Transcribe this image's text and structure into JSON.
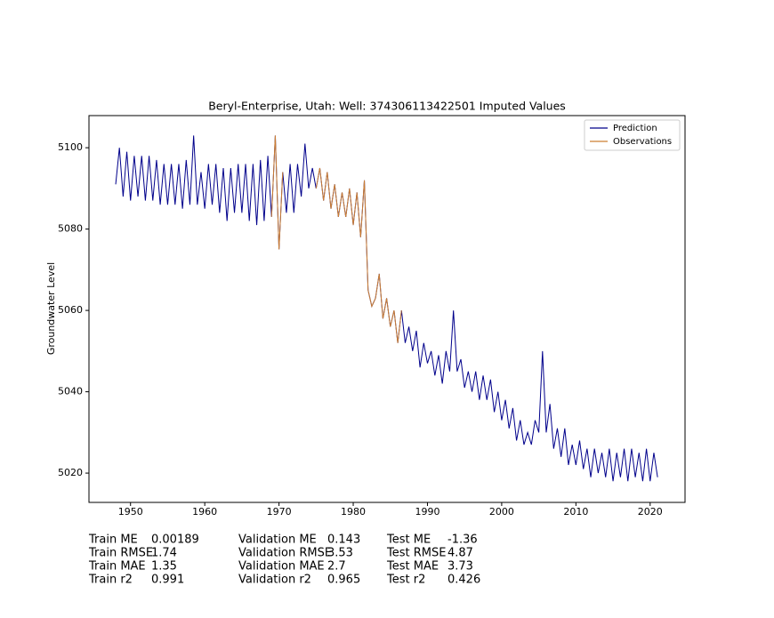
{
  "chart_data": {
    "type": "line",
    "title": "Beryl-Enterprise, Utah: Well: 374306113422501 Imputed Values",
    "y_label": "Groundwater Level",
    "xlim": [
      1944.4,
      2024.7
    ],
    "ylim": [
      5012.8,
      5107.9
    ],
    "xticks": [
      1950,
      1960,
      1970,
      1980,
      1990,
      2000,
      2010,
      2020
    ],
    "yticks": [
      5020,
      5040,
      5060,
      5080,
      5100
    ],
    "grid": false,
    "legend": "upper right",
    "series": [
      {
        "name": "Prediction",
        "color": "#00008b",
        "x": [
          1948,
          1948.5,
          1949,
          1949.5,
          1950,
          1950.5,
          1951,
          1951.5,
          1952,
          1952.5,
          1953,
          1953.5,
          1954,
          1954.5,
          1955,
          1955.5,
          1956,
          1956.5,
          1957,
          1957.5,
          1958,
          1958.5,
          1959,
          1959.5,
          1960,
          1960.5,
          1961,
          1961.5,
          1962,
          1962.5,
          1963,
          1963.5,
          1964,
          1964.5,
          1965,
          1965.5,
          1966,
          1966.5,
          1967,
          1967.5,
          1968,
          1968.5,
          1969,
          1969.5,
          1970,
          1970.5,
          1971,
          1971.5,
          1972,
          1972.5,
          1973,
          1973.5,
          1974,
          1974.5,
          1975,
          1975.5,
          1976,
          1976.5,
          1977,
          1977.5,
          1978,
          1978.5,
          1979,
          1979.5,
          1980,
          1980.5,
          1981,
          1981.5,
          1982,
          1982.5,
          1983,
          1983.5,
          1984,
          1984.5,
          1985,
          1985.5,
          1986,
          1986.5,
          1987,
          1987.5,
          1988,
          1988.5,
          1989,
          1989.5,
          1990,
          1990.5,
          1991,
          1991.5,
          1992,
          1992.5,
          1993,
          1993.5,
          1994,
          1994.5,
          1995,
          1995.5,
          1996,
          1996.5,
          1997,
          1997.5,
          1998,
          1998.5,
          1999,
          1999.5,
          2000,
          2000.5,
          2001,
          2001.5,
          2002,
          2002.5,
          2003,
          2003.5,
          2004,
          2004.5,
          2005,
          2005.5,
          2006,
          2006.5,
          2007,
          2007.5,
          2008,
          2008.5,
          2009,
          2009.5,
          2010,
          2010.5,
          2011,
          2011.5,
          2012,
          2012.5,
          2013,
          2013.5,
          2014,
          2014.5,
          2015,
          2015.5,
          2016,
          2016.5,
          2017,
          2017.5,
          2018,
          2018.5,
          2019,
          2019.5,
          2020,
          2020.5,
          2021
        ],
        "values": [
          5091,
          5100,
          5088,
          5099,
          5087,
          5098,
          5088,
          5098,
          5087,
          5098,
          5087,
          5097,
          5086,
          5096,
          5086,
          5096,
          5086,
          5096,
          5085,
          5097,
          5086,
          5103,
          5086,
          5094,
          5085,
          5096,
          5086,
          5096,
          5084,
          5095,
          5082,
          5095,
          5084,
          5096,
          5084,
          5096,
          5082,
          5096,
          5081,
          5097,
          5082,
          5098,
          5083,
          5103,
          5075,
          5094,
          5084,
          5096,
          5084,
          5096,
          5088,
          5101,
          5090,
          5095,
          5090,
          5095,
          5087,
          5094,
          5085,
          5091,
          5083,
          5089,
          5083,
          5090,
          5081,
          5089,
          5078,
          5092,
          5065,
          5061,
          5063,
          5069,
          5058,
          5063,
          5056,
          5060,
          5052,
          5060,
          5052,
          5056,
          5050,
          5055,
          5046,
          5052,
          5047,
          5050,
          5044,
          5049,
          5042,
          5050,
          5045,
          5060,
          5045,
          5048,
          5041,
          5045,
          5040,
          5045,
          5038,
          5044,
          5038,
          5043,
          5035,
          5040,
          5033,
          5038,
          5031,
          5036,
          5028,
          5033,
          5027,
          5030,
          5027,
          5033,
          5030,
          5050,
          5030,
          5037,
          5026,
          5031,
          5024,
          5031,
          5022,
          5027,
          5022,
          5028,
          5021,
          5026,
          5019,
          5026,
          5020,
          5025,
          5019,
          5026,
          5018,
          5025,
          5019,
          5026,
          5018,
          5026,
          5019,
          5025,
          5018,
          5026,
          5018,
          5025,
          5019
        ]
      },
      {
        "name": "Observations",
        "color": "#cd7f32",
        "x": [
          1969,
          1969.5,
          1970,
          1970.5,
          1971,
          1971.5,
          1972,
          1972.5,
          1973,
          1973.5,
          1974,
          1974.5,
          1975,
          1975.5,
          1976,
          1976.5,
          1977,
          1977.5,
          1978,
          1978.5,
          1979,
          1979.5,
          1980,
          1980.5,
          1981,
          1981.5,
          1982,
          1982.5,
          1983,
          1983.5,
          1984,
          1984.5,
          1985,
          1985.5,
          1986,
          1986.5
        ],
        "values": [
          5083,
          5103,
          5075,
          5094,
          null,
          null,
          null,
          null,
          null,
          null,
          null,
          null,
          5090,
          5095,
          5087,
          5094,
          5085,
          5091,
          5083,
          5089,
          5083,
          5090,
          5081,
          5089,
          5078,
          5092,
          5065,
          5061,
          5063,
          5069,
          5058,
          5063,
          5056,
          5060,
          5052,
          5060
        ]
      }
    ],
    "metrics": [
      [
        {
          "label": "Train ME",
          "value": 0.00189
        },
        {
          "label": "Train RMSE",
          "value": 1.74
        },
        {
          "label": "Train MAE",
          "value": 1.35
        },
        {
          "label": "Train r2",
          "value": 0.991
        }
      ],
      [
        {
          "label": "Validation ME",
          "value": 0.143
        },
        {
          "label": "Validation RMSE",
          "value": 3.53
        },
        {
          "label": "Validation MAE",
          "value": 2.7
        },
        {
          "label": "Validation r2",
          "value": 0.965
        }
      ],
      [
        {
          "label": "Test ME",
          "value": -1.36
        },
        {
          "label": "Test RMSE",
          "value": 4.87
        },
        {
          "label": "Test MAE",
          "value": 3.73
        },
        {
          "label": "Test r2",
          "value": 0.426
        }
      ]
    ]
  }
}
